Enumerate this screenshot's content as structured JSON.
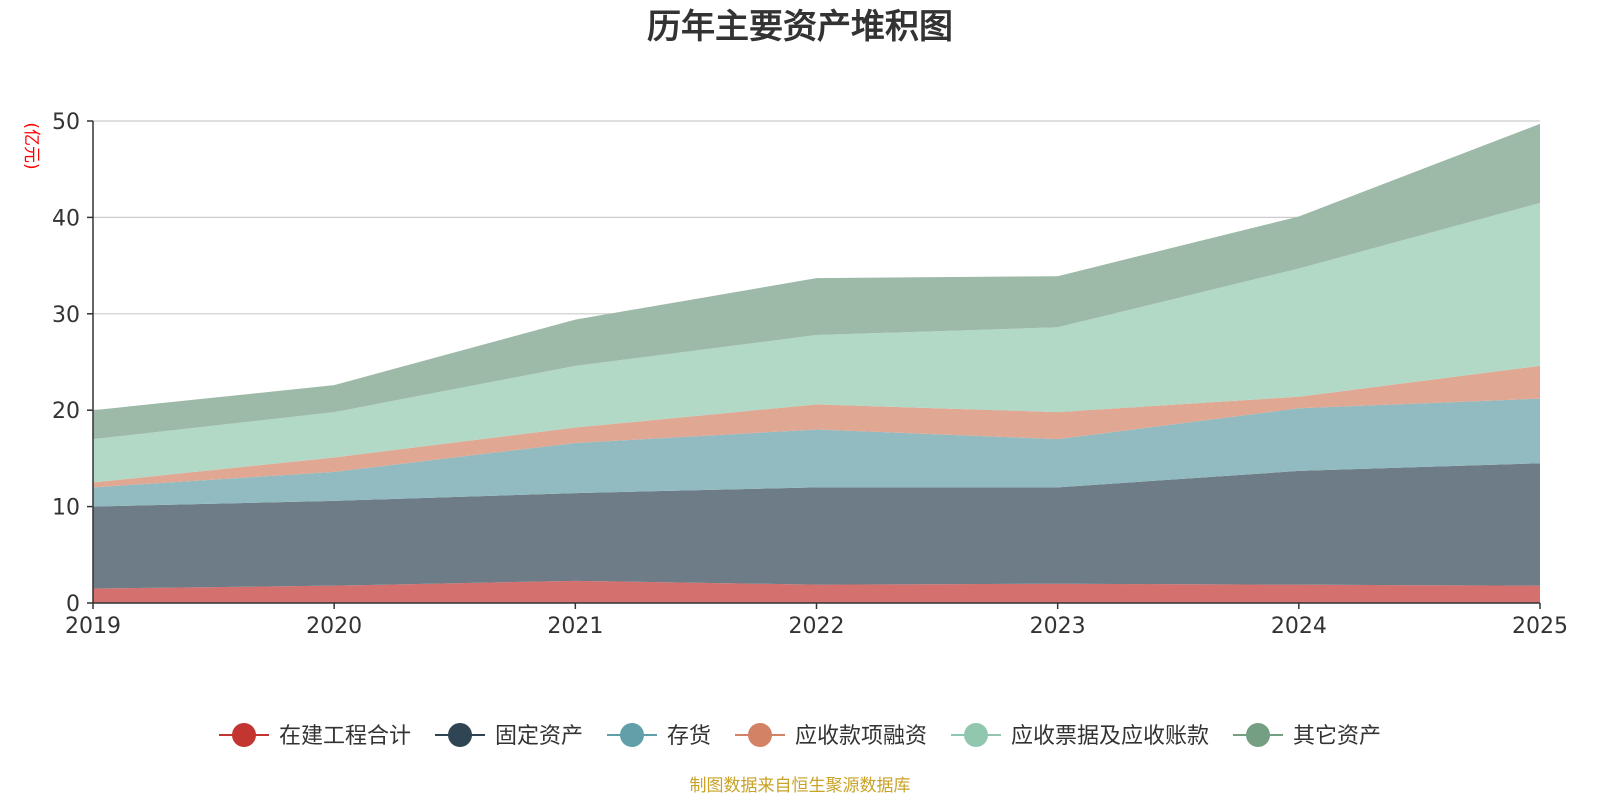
{
  "chart_data": {
    "type": "area",
    "stacked": true,
    "title": "历年主要资产堆积图",
    "ylabel": "(亿元)",
    "xlabel": "",
    "categories": [
      "2019",
      "2020",
      "2021",
      "2022",
      "2023",
      "2024",
      "2025"
    ],
    "ylim": [
      0,
      50
    ],
    "yticks": [
      0,
      10,
      20,
      30,
      40,
      50
    ],
    "grid": true,
    "legend_position": "bottom",
    "series": [
      {
        "name": "在建工程合计",
        "color": "#c23531",
        "fill": "#d4706e",
        "values": [
          1.5,
          1.8,
          2.3,
          1.9,
          2.0,
          1.9,
          1.8
        ]
      },
      {
        "name": "固定资产",
        "color": "#2f4554",
        "fill": "#6e7c87",
        "values": [
          8.5,
          8.8,
          9.1,
          10.1,
          10.0,
          11.8,
          12.7
        ]
      },
      {
        "name": "存货",
        "color": "#61a0a8",
        "fill": "#91bbc0",
        "values": [
          2.0,
          3.0,
          5.2,
          6.0,
          5.0,
          6.5,
          6.7
        ]
      },
      {
        "name": "应收款项融资",
        "color": "#d48265",
        "fill": "#e0a793",
        "values": [
          0.5,
          1.5,
          1.6,
          2.6,
          2.8,
          1.2,
          3.4
        ]
      },
      {
        "name": "应收票据及应收账款",
        "color": "#91c7ae",
        "fill": "#b2d8c6",
        "values": [
          4.5,
          4.7,
          6.4,
          7.2,
          8.8,
          13.3,
          16.9
        ]
      },
      {
        "name": "其它资产",
        "color": "#749f83",
        "fill": "#9db9a7",
        "values": [
          3.0,
          2.8,
          4.8,
          5.9,
          5.3,
          5.4,
          8.2
        ]
      }
    ]
  },
  "footer": {
    "source": "制图数据来自恒生聚源数据库"
  },
  "colors": {
    "unit_label": "#ff0000",
    "source_text": "#c9a227",
    "grid": "#cccccc",
    "axis": "#333333"
  }
}
